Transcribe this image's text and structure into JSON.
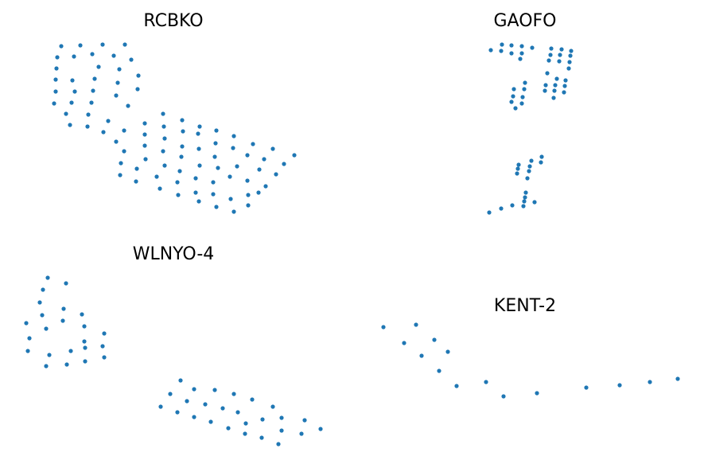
{
  "chart_data": [
    {
      "type": "scatter",
      "title": "RCBKO",
      "color": "#1f77b4",
      "xlim": [
        0,
        442
      ],
      "ylim": [
        0,
        291
      ],
      "x": [
        77,
        101,
        129,
        157,
        72,
        93,
        116,
        143,
        165,
        71,
        124,
        150,
        70,
        91,
        119,
        174,
        70,
        94,
        117,
        148,
        68,
        90,
        115,
        146,
        173,
        83,
        111,
        161,
        88,
        110,
        136,
        182,
        205,
        130,
        156,
        206,
        229,
        251,
        272,
        182,
        207,
        230,
        249,
        146,
        182,
        205,
        229,
        250,
        271,
        294,
        318,
        343,
        156,
        183,
        207,
        228,
        270,
        293,
        311,
        332,
        357,
        370,
        152,
        172,
        226,
        251,
        274,
        298,
        326,
        347,
        151,
        171,
        197,
        223,
        246,
        268,
        289,
        311,
        334,
        201,
        224,
        246,
        268,
        290,
        312,
        250,
        272,
        294,
        312,
        325
      ],
      "y": [
        233,
        234,
        235,
        235,
        219,
        220,
        223,
        221,
        216,
        205,
        207,
        204,
        191,
        190,
        192,
        196,
        176,
        176,
        177,
        187,
        161,
        162,
        162,
        171,
        179,
        148,
        147,
        158,
        134,
        132,
        139,
        136,
        148,
        125,
        127,
        132,
        140,
        132,
        127,
        122,
        117,
        126,
        123,
        113,
        108,
        101,
        107,
        104,
        111,
        120,
        110,
        104,
        101,
        91,
        83,
        94,
        94,
        105,
        96,
        91,
        85,
        96,
        86,
        79,
        76,
        83,
        80,
        82,
        78,
        72,
        71,
        63,
        69,
        62,
        67,
        62,
        69,
        64,
        57,
        54,
        46,
        49,
        47,
        41,
        46,
        38,
        31,
        25,
        33,
        49
      ]
    },
    {
      "type": "scatter",
      "title": "GAOFO",
      "color": "#1f77b4",
      "xlim": [
        0,
        442
      ],
      "ylim": [
        0,
        291
      ],
      "x": [
        175,
        188,
        201,
        214,
        227,
        189,
        201,
        214,
        212,
        251,
        264,
        276,
        250,
        262,
        275,
        248,
        261,
        274,
        273,
        246,
        258,
        269,
        244,
        256,
        268,
        243,
        255,
        267,
        254,
        218,
        204,
        217,
        203,
        215,
        201,
        214,
        206,
        239,
        226,
        210,
        238,
        224,
        209,
        223,
        208,
        221,
        219,
        218,
        217,
        230,
        216,
        202,
        188,
        173
      ],
      "y": [
        228,
        227,
        234,
        233,
        231,
        235,
        224,
        224,
        217,
        230,
        229,
        227,
        222,
        222,
        221,
        215,
        214,
        213,
        205,
        199,
        192,
        190,
        184,
        184,
        183,
        177,
        177,
        175,
        168,
        187,
        179,
        179,
        170,
        169,
        163,
        161,
        155,
        94,
        89,
        84,
        87,
        82,
        79,
        76,
        73,
        67,
        49,
        43,
        38,
        37,
        32,
        33,
        29,
        24
      ]
    },
    {
      "type": "scatter",
      "title": "WLNYO-4",
      "color": "#1f77b4",
      "xlim": [
        0,
        442
      ],
      "ylim": [
        0,
        291
      ],
      "x": [
        60,
        83,
        54,
        50,
        53,
        80,
        103,
        33,
        58,
        79,
        106,
        131,
        37,
        106,
        129,
        35,
        62,
        89,
        107,
        131,
        58,
        84,
        107,
        227,
        214,
        244,
        270,
        294,
        317,
        235,
        258,
        202,
        280,
        299,
        343,
        223,
        244,
        265,
        287,
        309,
        330,
        354,
        383,
        308,
        329,
        354,
        379,
        403,
        350
      ],
      "y": [
        233,
        226,
        218,
        202,
        186,
        194,
        187,
        176,
        169,
        179,
        172,
        163,
        157,
        153,
        147,
        141,
        136,
        141,
        145,
        133,
        122,
        124,
        128,
        104,
        87,
        93,
        92,
        87,
        80,
        78,
        74,
        71,
        69,
        64,
        71,
        64,
        58,
        52,
        44,
        50,
        55,
        57,
        54,
        37,
        32,
        41,
        37,
        43,
        24
      ]
    },
    {
      "type": "scatter",
      "title": "KENT-2",
      "color": "#1f77b4",
      "xlim": [
        0,
        442
      ],
      "ylim": [
        0,
        291
      ],
      "x": [
        40,
        81,
        66,
        104,
        88,
        121,
        110,
        132,
        169,
        191,
        233,
        295,
        337,
        375,
        410
      ],
      "y": [
        171,
        174,
        151,
        155,
        135,
        140,
        116,
        97,
        102,
        84,
        88,
        95,
        98,
        102,
        106
      ]
    }
  ]
}
